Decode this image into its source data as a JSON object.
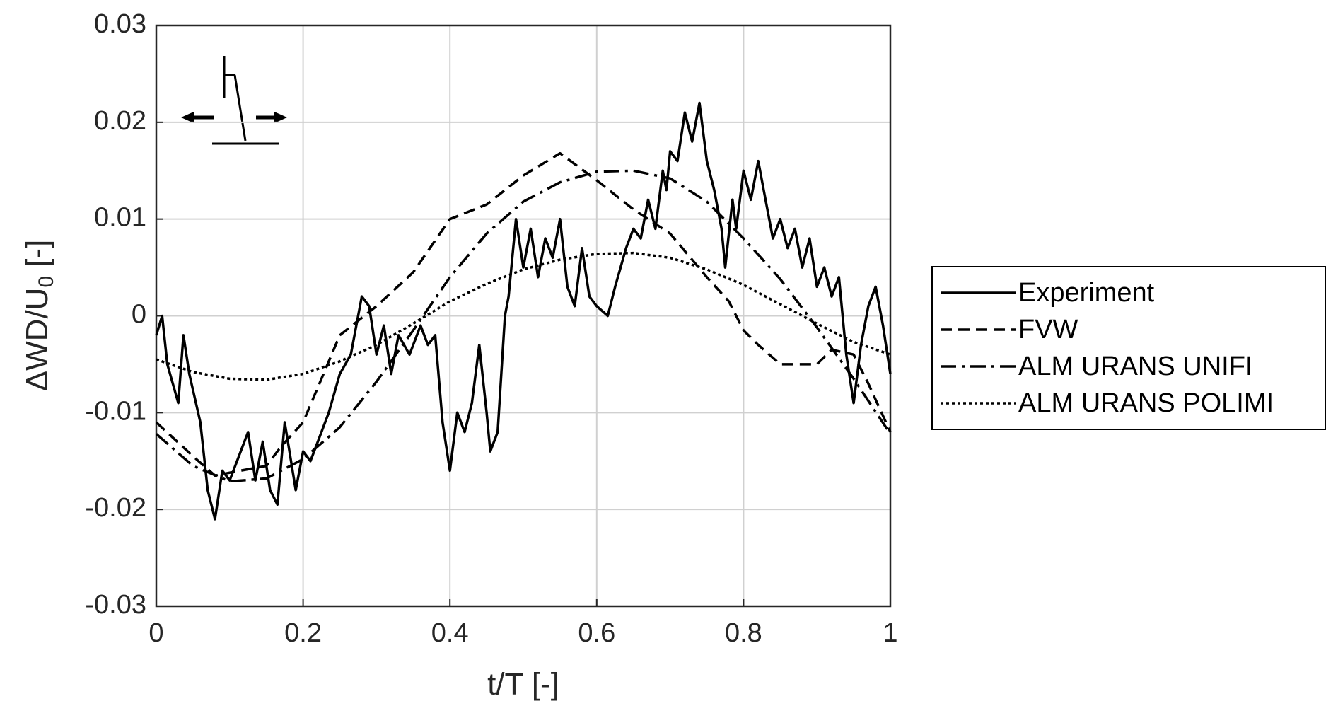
{
  "chart_data": {
    "type": "line",
    "xlabel": "t/T [-]",
    "ylabel_parts": [
      "ΔWD/U",
      "0",
      "[-]"
    ],
    "xlim": [
      0,
      1
    ],
    "xticks": [
      0,
      0.2,
      0.4,
      0.6,
      0.8,
      1
    ],
    "ylim": [
      -0.03,
      0.03
    ],
    "yticks": [
      -0.03,
      -0.02,
      -0.01,
      0,
      0.01,
      0.02,
      0.03
    ],
    "grid": true,
    "legend": "outside-right",
    "series": [
      {
        "name": "Experiment",
        "color": "#000000",
        "dash": "solid",
        "x": [
          0,
          0.008,
          0.015,
          0.03,
          0.037,
          0.045,
          0.06,
          0.07,
          0.08,
          0.09,
          0.1,
          0.11,
          0.125,
          0.135,
          0.145,
          0.155,
          0.165,
          0.175,
          0.19,
          0.2,
          0.21,
          0.22,
          0.235,
          0.25,
          0.265,
          0.28,
          0.29,
          0.3,
          0.31,
          0.32,
          0.33,
          0.345,
          0.36,
          0.37,
          0.38,
          0.39,
          0.4,
          0.41,
          0.42,
          0.43,
          0.44,
          0.45,
          0.455,
          0.465,
          0.475,
          0.48,
          0.49,
          0.5,
          0.51,
          0.52,
          0.53,
          0.54,
          0.55,
          0.56,
          0.57,
          0.58,
          0.59,
          0.6,
          0.615,
          0.625,
          0.64,
          0.65,
          0.66,
          0.67,
          0.68,
          0.69,
          0.695,
          0.7,
          0.71,
          0.72,
          0.73,
          0.74,
          0.75,
          0.76,
          0.77,
          0.775,
          0.785,
          0.79,
          0.8,
          0.81,
          0.82,
          0.83,
          0.84,
          0.85,
          0.86,
          0.87,
          0.88,
          0.89,
          0.9,
          0.91,
          0.92,
          0.93,
          0.94,
          0.95,
          0.96,
          0.97,
          0.98,
          0.99,
          1
        ],
        "values": [
          -0.002,
          0,
          -0.005,
          -0.009,
          -0.002,
          -0.006,
          -0.011,
          -0.018,
          -0.021,
          -0.016,
          -0.017,
          -0.015,
          -0.012,
          -0.017,
          -0.013,
          -0.018,
          -0.0195,
          -0.011,
          -0.018,
          -0.014,
          -0.015,
          -0.013,
          -0.01,
          -0.006,
          -0.004,
          0.002,
          0.001,
          -0.004,
          -0.001,
          -0.006,
          -0.002,
          -0.004,
          -0.001,
          -0.003,
          -0.002,
          -0.011,
          -0.016,
          -0.01,
          -0.012,
          -0.009,
          -0.003,
          -0.01,
          -0.014,
          -0.012,
          0,
          0.002,
          0.01,
          0.005,
          0.009,
          0.004,
          0.008,
          0.006,
          0.01,
          0.003,
          0.001,
          0.007,
          0.002,
          0.001,
          0,
          0.003,
          0.007,
          0.009,
          0.008,
          0.012,
          0.009,
          0.015,
          0.013,
          0.017,
          0.016,
          0.021,
          0.018,
          0.022,
          0.016,
          0.013,
          0.009,
          0.005,
          0.012,
          0.009,
          0.015,
          0.012,
          0.016,
          0.012,
          0.008,
          0.01,
          0.007,
          0.009,
          0.005,
          0.008,
          0.003,
          0.005,
          0.002,
          0.004,
          -0.004,
          -0.009,
          -0.003,
          0.001,
          0.003,
          -0.001,
          -0.006
        ]
      },
      {
        "name": "FVW",
        "color": "#000000",
        "dash": "dashed",
        "x": [
          0,
          0.05,
          0.08,
          0.1,
          0.15,
          0.17,
          0.2,
          0.25,
          0.3,
          0.35,
          0.4,
          0.45,
          0.5,
          0.55,
          0.6,
          0.65,
          0.7,
          0.75,
          0.78,
          0.8,
          0.82,
          0.85,
          0.9,
          0.92,
          0.95,
          0.97,
          1
        ],
        "values": [
          -0.011,
          -0.0145,
          -0.0165,
          -0.0162,
          -0.0155,
          -0.0135,
          -0.011,
          -0.002,
          0.001,
          0.0045,
          0.01,
          0.0115,
          0.0145,
          0.0168,
          0.014,
          0.011,
          0.0085,
          0.004,
          0.0015,
          -0.0015,
          -0.003,
          -0.005,
          -0.005,
          -0.0035,
          -0.004,
          -0.007,
          -0.012
        ]
      },
      {
        "name": "ALM URANS UNIFI",
        "color": "#000000",
        "dash": "dashdot",
        "x": [
          0,
          0.05,
          0.1,
          0.15,
          0.2,
          0.25,
          0.3,
          0.35,
          0.4,
          0.45,
          0.5,
          0.55,
          0.6,
          0.65,
          0.7,
          0.75,
          0.8,
          0.85,
          0.9,
          0.95,
          1
        ],
        "values": [
          -0.0122,
          -0.0155,
          -0.0171,
          -0.0168,
          -0.0148,
          -0.0115,
          -0.0068,
          -0.0015,
          0.004,
          0.0085,
          0.0118,
          0.0138,
          0.0149,
          0.015,
          0.0142,
          0.0118,
          0.008,
          0.0038,
          -0.0012,
          -0.0065,
          -0.0122
        ]
      },
      {
        "name": "ALM URANS POLIMI",
        "color": "#000000",
        "dash": "dotted",
        "x": [
          0,
          0.05,
          0.1,
          0.15,
          0.2,
          0.25,
          0.3,
          0.35,
          0.4,
          0.45,
          0.5,
          0.55,
          0.6,
          0.65,
          0.7,
          0.75,
          0.8,
          0.85,
          0.9,
          0.95,
          1
        ],
        "values": [
          -0.0045,
          -0.0058,
          -0.0065,
          -0.0066,
          -0.006,
          -0.0047,
          -0.003,
          -0.0008,
          0.0015,
          0.0033,
          0.0048,
          0.0058,
          0.0064,
          0.0065,
          0.006,
          0.0048,
          0.0032,
          0.0012,
          -0.0008,
          -0.0027,
          -0.004
        ]
      }
    ]
  }
}
